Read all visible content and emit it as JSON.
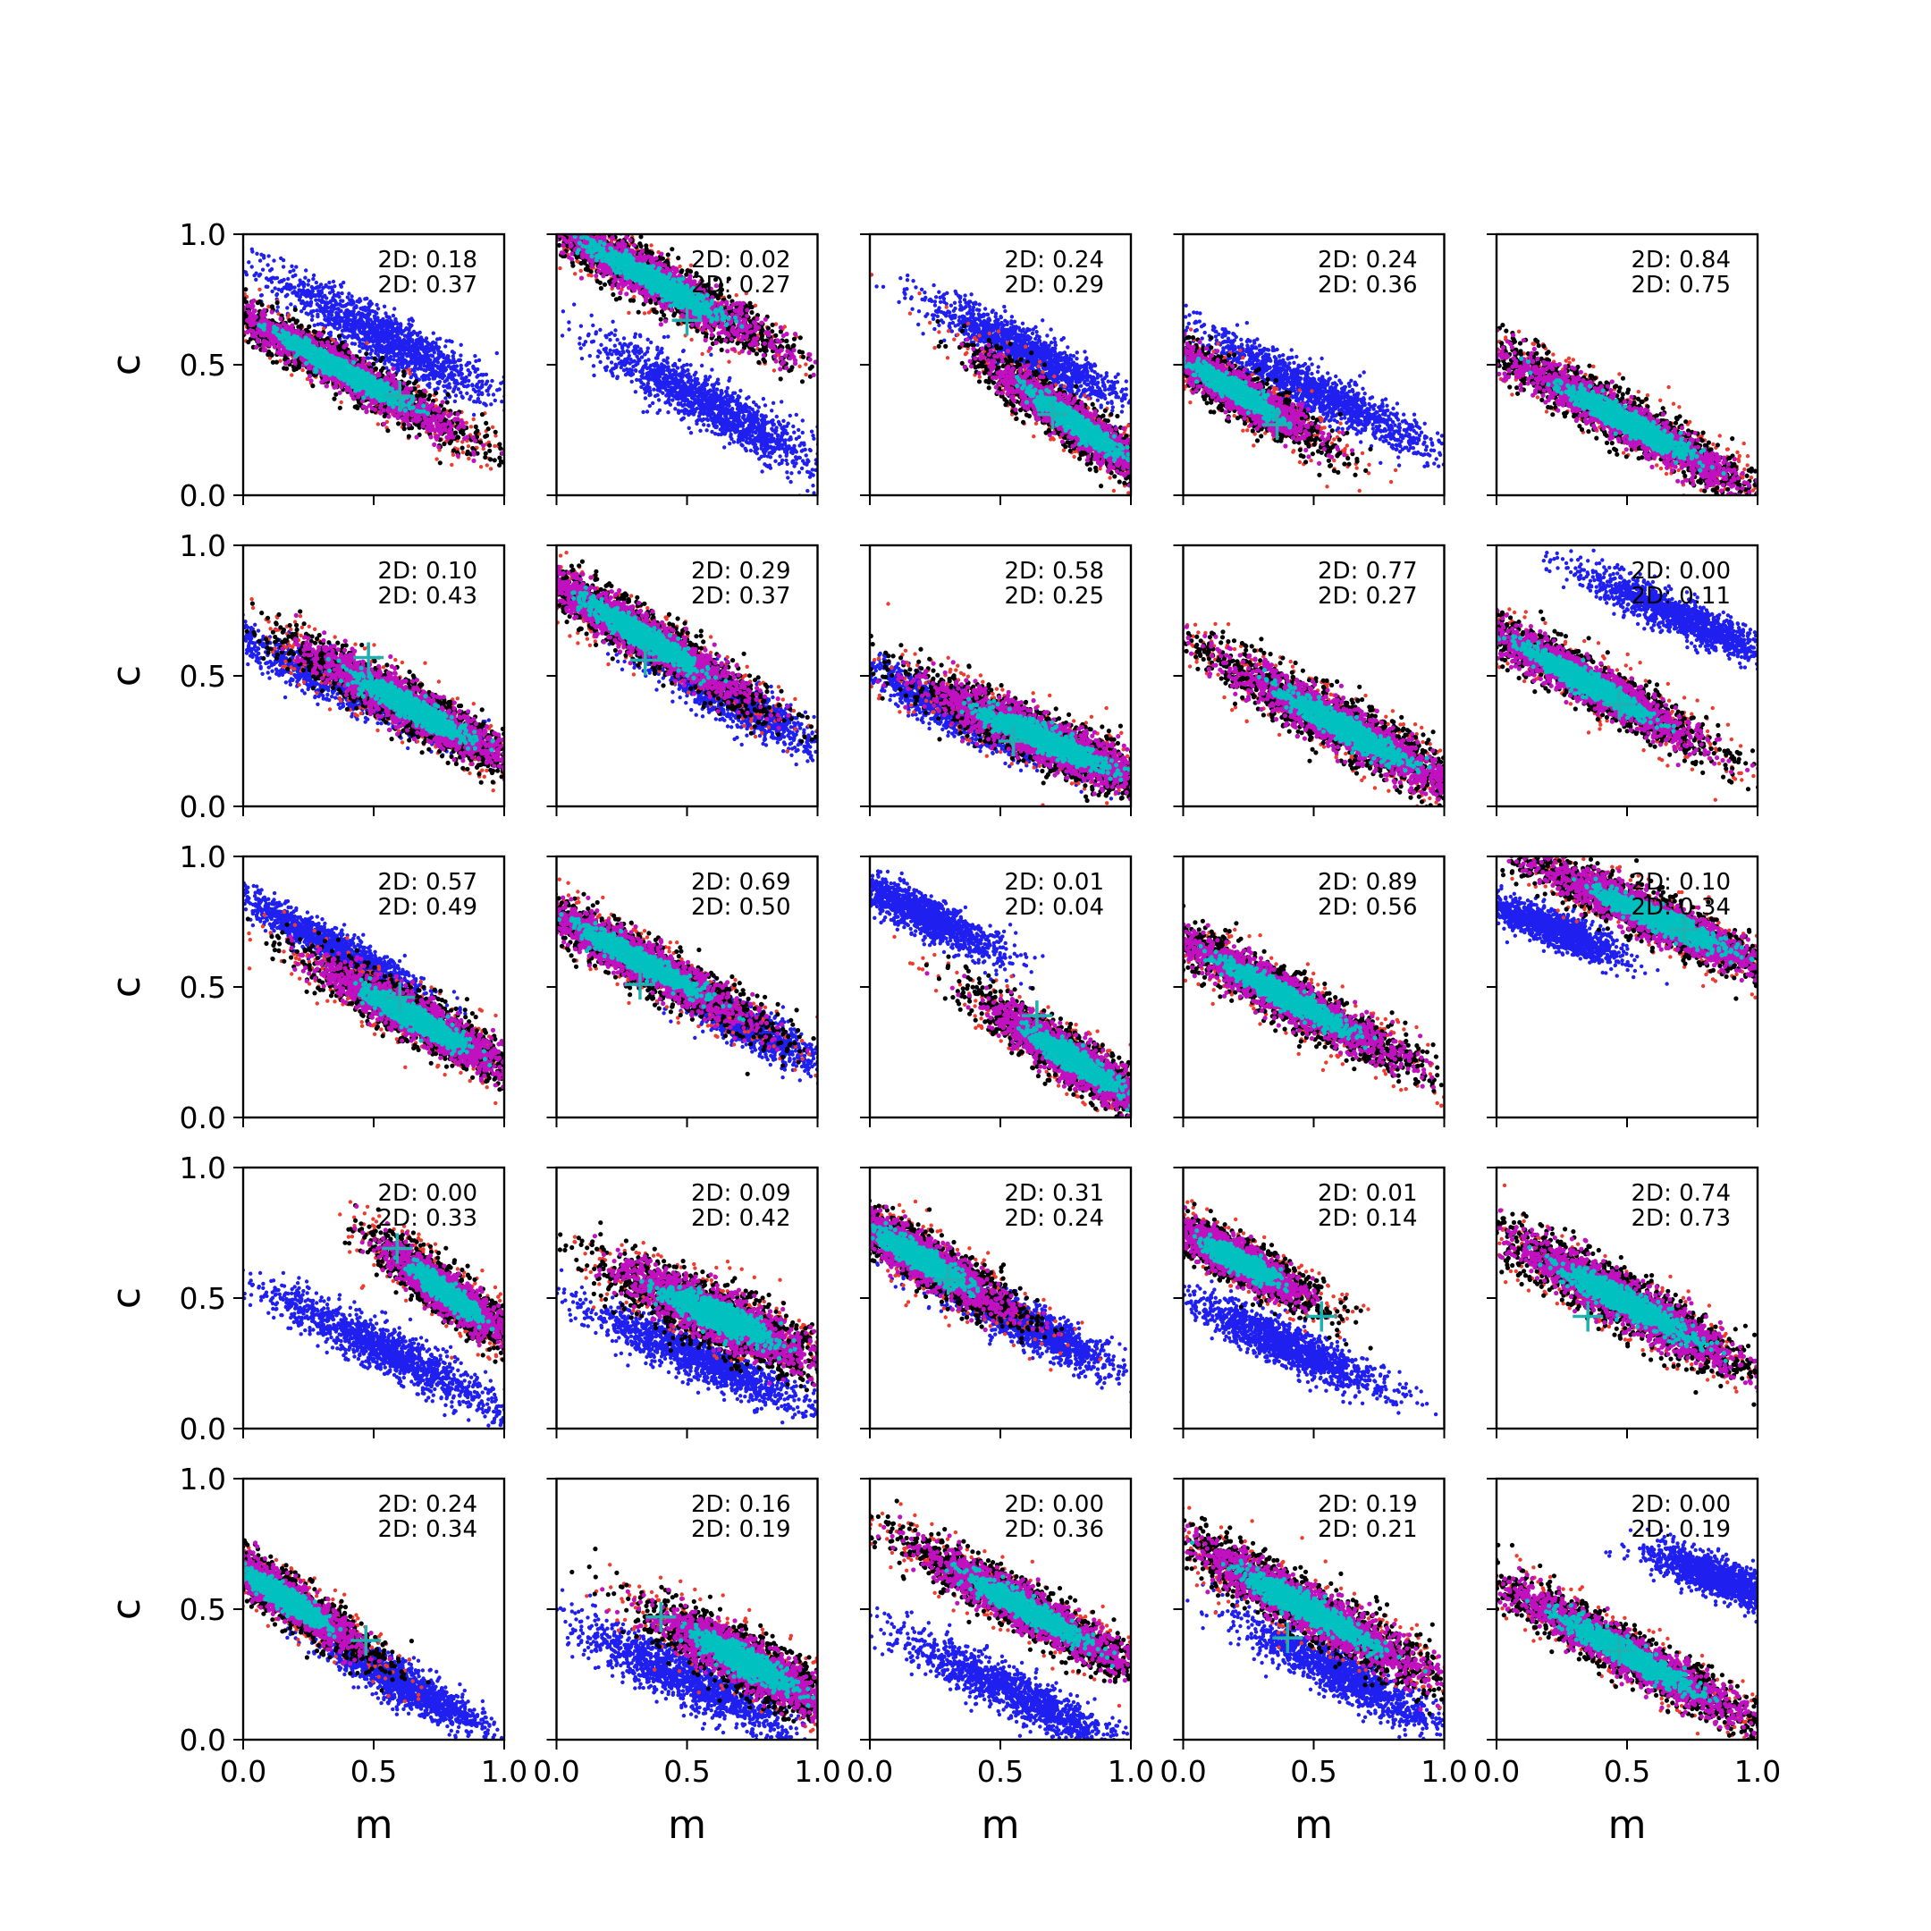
{
  "colors": {
    "blue": "#1f1ff0",
    "red": "#f03a2e",
    "black": "#000000",
    "magenta": "#c010c0",
    "cyan": "#00c0c0",
    "marker": "#20b0b0"
  },
  "chart_data": {
    "type": "scatter",
    "layout": "5x5 grid of scatter panels",
    "xlabel": "m",
    "ylabel": "c",
    "xlim": [
      0,
      1
    ],
    "ylim": [
      0,
      1
    ],
    "x_ticks": [
      0.0,
      0.5,
      1.0
    ],
    "y_ticks": [
      0.0,
      0.5,
      1.0
    ],
    "x_tick_labels": [
      "0.0",
      "0.5",
      "1.0"
    ],
    "y_tick_labels": [
      "0.0",
      "0.5",
      "1.0"
    ],
    "grid": false,
    "series_colors": [
      "blue",
      "red",
      "black",
      "magenta",
      "cyan"
    ],
    "panels": [
      {
        "row": 0,
        "col": 0,
        "labels": [
          "2D: 0.18",
          "2D: 0.37"
        ],
        "main": {
          "center": [
            0.38,
            0.48
          ],
          "slope": -0.55,
          "half_len": 0.55,
          "half_wid": 0.07
        },
        "blue": {
          "center": [
            0.55,
            0.6
          ],
          "slope": -0.55,
          "half_len": 0.48,
          "half_wid": 0.09
        },
        "marker": [
          0.6,
          0.38
        ]
      },
      {
        "row": 0,
        "col": 1,
        "labels": [
          "2D: 0.02",
          "2D: 0.27"
        ],
        "main": {
          "center": [
            0.38,
            0.82
          ],
          "slope": -0.55,
          "half_len": 0.55,
          "half_wid": 0.08
        },
        "blue": {
          "center": [
            0.6,
            0.34
          ],
          "slope": -0.55,
          "half_len": 0.48,
          "half_wid": 0.09
        },
        "marker": [
          0.5,
          0.67
        ]
      },
      {
        "row": 0,
        "col": 2,
        "labels": [
          "2D: 0.24",
          "2D: 0.29"
        ],
        "main": {
          "center": [
            0.78,
            0.28
          ],
          "slope": -0.7,
          "half_len": 0.4,
          "half_wid": 0.07
        },
        "blue": {
          "center": [
            0.6,
            0.55
          ],
          "slope": -0.5,
          "half_len": 0.42,
          "half_wid": 0.08
        },
        "marker": [
          0.7,
          0.31
        ]
      },
      {
        "row": 0,
        "col": 3,
        "labels": [
          "2D: 0.24",
          "2D: 0.36"
        ],
        "main": {
          "center": [
            0.2,
            0.4
          ],
          "slope": -0.6,
          "half_len": 0.36,
          "half_wid": 0.07
        },
        "blue": {
          "center": [
            0.5,
            0.4
          ],
          "slope": -0.5,
          "half_len": 0.5,
          "half_wid": 0.08
        },
        "marker": [
          0.36,
          0.27
        ]
      },
      {
        "row": 0,
        "col": 4,
        "labels": [
          "2D: 0.84",
          "2D: 0.75"
        ],
        "main": {
          "center": [
            0.5,
            0.28
          ],
          "slope": -0.55,
          "half_len": 0.58,
          "half_wid": 0.08
        },
        "blue": null,
        "marker": null
      },
      {
        "row": 1,
        "col": 0,
        "labels": [
          "2D: 0.10",
          "2D: 0.43"
        ],
        "main": {
          "center": [
            0.64,
            0.38
          ],
          "slope": -0.55,
          "half_len": 0.48,
          "half_wid": 0.08
        },
        "blue": {
          "center": [
            0.42,
            0.45
          ],
          "slope": -0.45,
          "half_len": 0.55,
          "half_wid": 0.08
        },
        "marker": [
          0.48,
          0.57
        ]
      },
      {
        "row": 1,
        "col": 1,
        "labels": [
          "2D: 0.29",
          "2D: 0.37"
        ],
        "main": {
          "center": [
            0.32,
            0.66
          ],
          "slope": -0.6,
          "half_len": 0.52,
          "half_wid": 0.08
        },
        "blue": {
          "center": [
            0.65,
            0.42
          ],
          "slope": -0.55,
          "half_len": 0.42,
          "half_wid": 0.08
        },
        "marker": [
          0.34,
          0.56
        ]
      },
      {
        "row": 1,
        "col": 2,
        "labels": [
          "2D: 0.58",
          "2D: 0.25"
        ],
        "main": {
          "center": [
            0.66,
            0.26
          ],
          "slope": -0.45,
          "half_len": 0.52,
          "half_wid": 0.09
        },
        "blue": {
          "center": [
            0.35,
            0.35
          ],
          "slope": -0.5,
          "half_len": 0.45,
          "half_wid": 0.07
        },
        "marker": [
          0.55,
          0.25
        ]
      },
      {
        "row": 1,
        "col": 3,
        "labels": [
          "2D: 0.77",
          "2D: 0.27"
        ],
        "main": {
          "center": [
            0.62,
            0.3
          ],
          "slope": -0.55,
          "half_len": 0.55,
          "half_wid": 0.09
        },
        "blue": null,
        "marker": null
      },
      {
        "row": 1,
        "col": 4,
        "labels": [
          "2D: 0.00",
          "2D: 0.11"
        ],
        "main": {
          "center": [
            0.34,
            0.48
          ],
          "slope": -0.55,
          "half_len": 0.52,
          "half_wid": 0.08
        },
        "blue": {
          "center": [
            0.72,
            0.72
          ],
          "slope": -0.45,
          "half_len": 0.42,
          "half_wid": 0.07
        },
        "marker": [
          0.47,
          0.39
        ]
      },
      {
        "row": 2,
        "col": 0,
        "labels": [
          "2D: 0.57",
          "2D: 0.49"
        ],
        "main": {
          "center": [
            0.66,
            0.38
          ],
          "slope": -0.55,
          "half_len": 0.45,
          "half_wid": 0.08
        },
        "blue": {
          "center": [
            0.35,
            0.65
          ],
          "slope": -0.55,
          "half_len": 0.4,
          "half_wid": 0.06
        },
        "marker": [
          0.6,
          0.46
        ]
      },
      {
        "row": 2,
        "col": 1,
        "labels": [
          "2D: 0.69",
          "2D: 0.50"
        ],
        "main": {
          "center": [
            0.32,
            0.6
          ],
          "slope": -0.55,
          "half_len": 0.52,
          "half_wid": 0.08
        },
        "blue": {
          "center": [
            0.7,
            0.37
          ],
          "slope": -0.55,
          "half_len": 0.38,
          "half_wid": 0.07
        },
        "marker": [
          0.32,
          0.51
        ]
      },
      {
        "row": 2,
        "col": 2,
        "labels": [
          "2D: 0.01",
          "2D: 0.04"
        ],
        "main": {
          "center": [
            0.78,
            0.22
          ],
          "slope": -0.65,
          "half_len": 0.4,
          "half_wid": 0.08
        },
        "blue": {
          "center": [
            0.2,
            0.78
          ],
          "slope": -0.5,
          "half_len": 0.36,
          "half_wid": 0.07
        },
        "marker": [
          0.64,
          0.39
        ]
      },
      {
        "row": 2,
        "col": 3,
        "labels": [
          "2D: 0.89",
          "2D: 0.56"
        ],
        "main": {
          "center": [
            0.4,
            0.46
          ],
          "slope": -0.55,
          "half_len": 0.55,
          "half_wid": 0.08
        },
        "blue": null,
        "marker": null
      },
      {
        "row": 2,
        "col": 4,
        "labels": [
          "2D: 0.10",
          "2D: 0.34"
        ],
        "main": {
          "center": [
            0.62,
            0.76
          ],
          "slope": -0.45,
          "half_len": 0.55,
          "half_wid": 0.08
        },
        "blue": {
          "center": [
            0.22,
            0.72
          ],
          "slope": -0.4,
          "half_len": 0.28,
          "half_wid": 0.06
        },
        "marker": [
          0.72,
          0.72
        ]
      },
      {
        "row": 3,
        "col": 0,
        "labels": [
          "2D: 0.00",
          "2D: 0.33"
        ],
        "main": {
          "center": [
            0.78,
            0.52
          ],
          "slope": -0.75,
          "half_len": 0.3,
          "half_wid": 0.07
        },
        "blue": {
          "center": [
            0.55,
            0.3
          ],
          "slope": -0.5,
          "half_len": 0.55,
          "half_wid": 0.08
        },
        "marker": [
          0.59,
          0.69
        ]
      },
      {
        "row": 3,
        "col": 1,
        "labels": [
          "2D: 0.09",
          "2D: 0.42"
        ],
        "main": {
          "center": [
            0.62,
            0.43
          ],
          "slope": -0.45,
          "half_len": 0.45,
          "half_wid": 0.1
        },
        "blue": {
          "center": [
            0.55,
            0.27
          ],
          "slope": -0.45,
          "half_len": 0.48,
          "half_wid": 0.08
        },
        "marker": null
      },
      {
        "row": 3,
        "col": 2,
        "labels": [
          "2D: 0.31",
          "2D: 0.24"
        ],
        "main": {
          "center": [
            0.2,
            0.65
          ],
          "slope": -0.6,
          "half_len": 0.4,
          "half_wid": 0.08
        },
        "blue": {
          "center": [
            0.6,
            0.4
          ],
          "slope": -0.5,
          "half_len": 0.42,
          "half_wid": 0.08
        },
        "marker": [
          0.3,
          0.57
        ]
      },
      {
        "row": 3,
        "col": 3,
        "labels": [
          "2D: 0.01",
          "2D: 0.14"
        ],
        "main": {
          "center": [
            0.22,
            0.64
          ],
          "slope": -0.55,
          "half_len": 0.3,
          "half_wid": 0.07
        },
        "blue": {
          "center": [
            0.4,
            0.32
          ],
          "slope": -0.45,
          "half_len": 0.4,
          "half_wid": 0.08
        },
        "marker": [
          0.53,
          0.43
        ]
      },
      {
        "row": 3,
        "col": 4,
        "labels": [
          "2D: 0.74",
          "2D: 0.73"
        ],
        "main": {
          "center": [
            0.5,
            0.48
          ],
          "slope": -0.55,
          "half_len": 0.56,
          "half_wid": 0.09
        },
        "blue": null,
        "marker": [
          0.35,
          0.43
        ]
      },
      {
        "row": 4,
        "col": 0,
        "labels": [
          "2D: 0.24",
          "2D: 0.34"
        ],
        "main": {
          "center": [
            0.15,
            0.55
          ],
          "slope": -0.65,
          "half_len": 0.38,
          "half_wid": 0.07
        },
        "blue": {
          "center": [
            0.6,
            0.22
          ],
          "slope": -0.55,
          "half_len": 0.38,
          "half_wid": 0.07
        },
        "marker": [
          0.47,
          0.38
        ]
      },
      {
        "row": 4,
        "col": 1,
        "labels": [
          "2D: 0.16",
          "2D: 0.19"
        ],
        "main": {
          "center": [
            0.72,
            0.3
          ],
          "slope": -0.55,
          "half_len": 0.4,
          "half_wid": 0.09
        },
        "blue": {
          "center": [
            0.5,
            0.23
          ],
          "slope": -0.5,
          "half_len": 0.48,
          "half_wid": 0.09
        },
        "marker": [
          0.4,
          0.47
        ]
      },
      {
        "row": 4,
        "col": 2,
        "labels": [
          "2D: 0.00",
          "2D: 0.36"
        ],
        "main": {
          "center": [
            0.6,
            0.5
          ],
          "slope": -0.55,
          "half_len": 0.5,
          "half_wid": 0.08
        },
        "blue": {
          "center": [
            0.55,
            0.18
          ],
          "slope": -0.5,
          "half_len": 0.48,
          "half_wid": 0.08
        },
        "marker": null
      },
      {
        "row": 4,
        "col": 3,
        "labels": [
          "2D: 0.19",
          "2D: 0.21"
        ],
        "main": {
          "center": [
            0.48,
            0.5
          ],
          "slope": -0.55,
          "half_len": 0.58,
          "half_wid": 0.09
        },
        "blue": {
          "center": [
            0.6,
            0.25
          ],
          "slope": -0.55,
          "half_len": 0.42,
          "half_wid": 0.08
        },
        "marker": [
          0.4,
          0.39
        ]
      },
      {
        "row": 4,
        "col": 4,
        "labels": [
          "2D: 0.00",
          "2D: 0.19"
        ],
        "main": {
          "center": [
            0.5,
            0.33
          ],
          "slope": -0.55,
          "half_len": 0.58,
          "half_wid": 0.08
        },
        "blue": {
          "center": [
            0.85,
            0.62
          ],
          "slope": -0.4,
          "half_len": 0.28,
          "half_wid": 0.07
        },
        "marker": [
          0.47,
          0.34
        ]
      }
    ]
  }
}
